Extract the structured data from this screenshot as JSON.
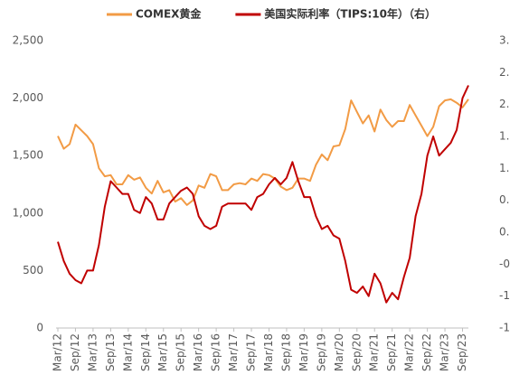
{
  "chart_data": {
    "type": "line",
    "categories": [
      "Mar/12",
      null,
      null,
      "Sep/12",
      null,
      null,
      "Mar/13",
      null,
      null,
      "Sep/13",
      null,
      null,
      "Mar/14",
      null,
      null,
      "Sep/14",
      null,
      null,
      "Mar/15",
      null,
      null,
      "Sep/15",
      null,
      null,
      "Mar/16",
      null,
      null,
      "Sep/16",
      null,
      null,
      "Mar/17",
      null,
      null,
      "Sep/17",
      null,
      null,
      "Mar/18",
      null,
      null,
      "Sep/18",
      null,
      null,
      "Mar/19",
      null,
      null,
      "Sep/19",
      null,
      null,
      "Mar/20",
      null,
      null,
      "Sep/20",
      null,
      null,
      "Mar/21",
      null,
      null,
      "Sep/21",
      null,
      null,
      "Mar/22",
      null,
      null,
      "Sep/22",
      null,
      null,
      "Mar/23",
      null,
      null,
      "Sep/23",
      null
    ],
    "series": [
      {
        "name": "COMEX黄金",
        "color": "#f29b45",
        "axis": "y",
        "values": [
          1670,
          1560,
          1600,
          1770,
          1720,
          1670,
          1600,
          1390,
          1320,
          1330,
          1250,
          1250,
          1330,
          1290,
          1310,
          1220,
          1170,
          1280,
          1180,
          1200,
          1100,
          1130,
          1070,
          1110,
          1240,
          1220,
          1340,
          1320,
          1200,
          1200,
          1250,
          1260,
          1250,
          1300,
          1280,
          1340,
          1330,
          1300,
          1230,
          1200,
          1220,
          1300,
          1300,
          1280,
          1420,
          1510,
          1460,
          1580,
          1590,
          1730,
          1980,
          1880,
          1780,
          1850,
          1710,
          1900,
          1810,
          1750,
          1800,
          1800,
          1940,
          1850,
          1760,
          1670,
          1750,
          1930,
          1980,
          1990,
          1960,
          1920,
          1990
        ]
      },
      {
        "name": "美国实际利率（TIPS:10年）（右）",
        "color": "#c00000",
        "axis": "y2",
        "values": [
          -0.15,
          -0.45,
          -0.65,
          -0.75,
          -0.8,
          -0.6,
          -0.6,
          -0.2,
          0.4,
          0.8,
          0.7,
          0.6,
          0.6,
          0.35,
          0.3,
          0.55,
          0.45,
          0.2,
          0.2,
          0.45,
          0.55,
          0.65,
          0.7,
          0.6,
          0.25,
          0.1,
          0.05,
          0.1,
          0.4,
          0.45,
          0.45,
          0.45,
          0.45,
          0.35,
          0.55,
          0.6,
          0.75,
          0.85,
          0.75,
          0.85,
          1.1,
          0.8,
          0.55,
          0.55,
          0.25,
          0.05,
          0.1,
          -0.05,
          -0.1,
          -0.45,
          -0.9,
          -0.95,
          -0.85,
          -1.0,
          -0.65,
          -0.8,
          -1.1,
          -0.95,
          -1.05,
          -0.7,
          -0.4,
          0.25,
          0.6,
          1.2,
          1.5,
          1.2,
          1.3,
          1.4,
          1.6,
          2.1,
          2.3
        ]
      }
    ],
    "ylim": [
      0,
      2500
    ],
    "yticks": [
      0,
      500,
      {
        "value": 1000,
        "label": "1,000"
      },
      {
        "value": 1500,
        "label": "1,500"
      },
      {
        "value": 2000,
        "label": "2,000"
      },
      {
        "value": 2500,
        "label": "2,500"
      }
    ],
    "y2lim": [
      -1.5,
      3
    ],
    "y2ticks": [
      -1.5,
      {
        "value": -1,
        "label": "-1.0"
      },
      -0.5,
      {
        "value": 0,
        "label": "0.0"
      },
      0.5,
      {
        "value": 1,
        "label": "1.0"
      },
      1.5,
      {
        "value": 2,
        "label": "2.0"
      },
      2.5,
      {
        "value": 3,
        "label": "3.0"
      }
    ],
    "grid": false,
    "legend": "top"
  }
}
